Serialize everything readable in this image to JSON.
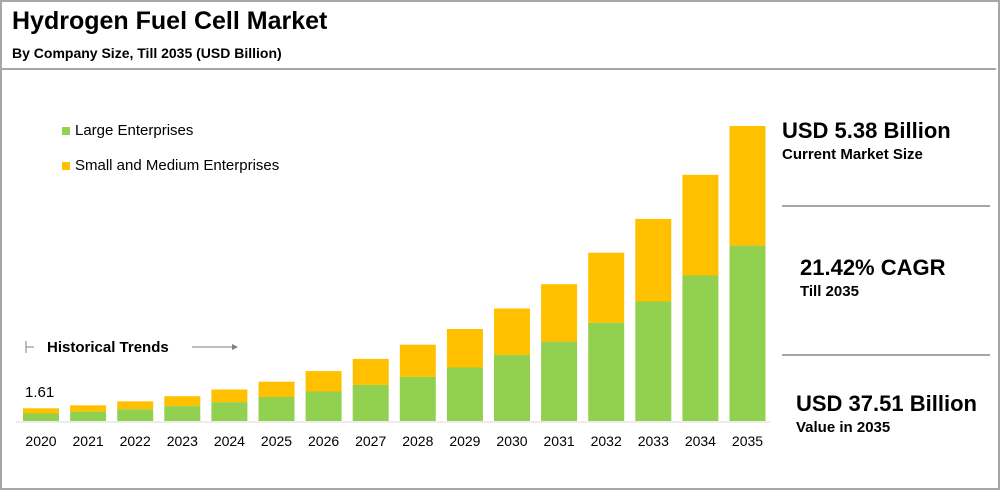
{
  "header": {
    "title": "Hydrogen Fuel Cell Market",
    "subtitle": "By Company Size, Till 2035 (USD Billion)"
  },
  "annotations": {
    "historical_trends": "Historical Trends",
    "first_value_label": "1.61"
  },
  "kpis": [
    {
      "value": "USD 5.38 Billion",
      "label": "Current Market Size"
    },
    {
      "value": "21.42% CAGR",
      "label": "Till 2035"
    },
    {
      "value": "USD 37.51 Billion",
      "label": "Value in 2035"
    }
  ],
  "colors": {
    "large": "#92d050",
    "sme": "#ffc000",
    "rule": "#a6a6a6"
  },
  "chart_data": {
    "type": "bar",
    "stacked": true,
    "title": "Hydrogen Fuel Cell Market",
    "subtitle": "By Company Size, Till 2035 (USD Billion)",
    "categories": [
      "2020",
      "2021",
      "2022",
      "2023",
      "2024",
      "2025",
      "2026",
      "2027",
      "2028",
      "2029",
      "2030",
      "2031",
      "2032",
      "2033",
      "2034",
      "2035"
    ],
    "series": [
      {
        "name": "Large Enterprises",
        "values": [
          0.95,
          1.2,
          1.5,
          1.9,
          2.4,
          3.05,
          3.75,
          4.6,
          5.6,
          6.8,
          8.4,
          10.1,
          12.5,
          15.2,
          18.5,
          22.3
        ]
      },
      {
        "name": "Small and Medium Enterprises",
        "values": [
          0.66,
          0.8,
          1.0,
          1.25,
          1.6,
          1.95,
          2.6,
          3.3,
          4.1,
          4.9,
          5.9,
          7.3,
          8.9,
          10.5,
          12.8,
          15.21
        ]
      }
    ],
    "ylim": [
      0,
      40
    ],
    "grid": false,
    "legend": "top-left",
    "data_labels": [
      {
        "category": "2020",
        "text": "1.61"
      }
    ]
  }
}
